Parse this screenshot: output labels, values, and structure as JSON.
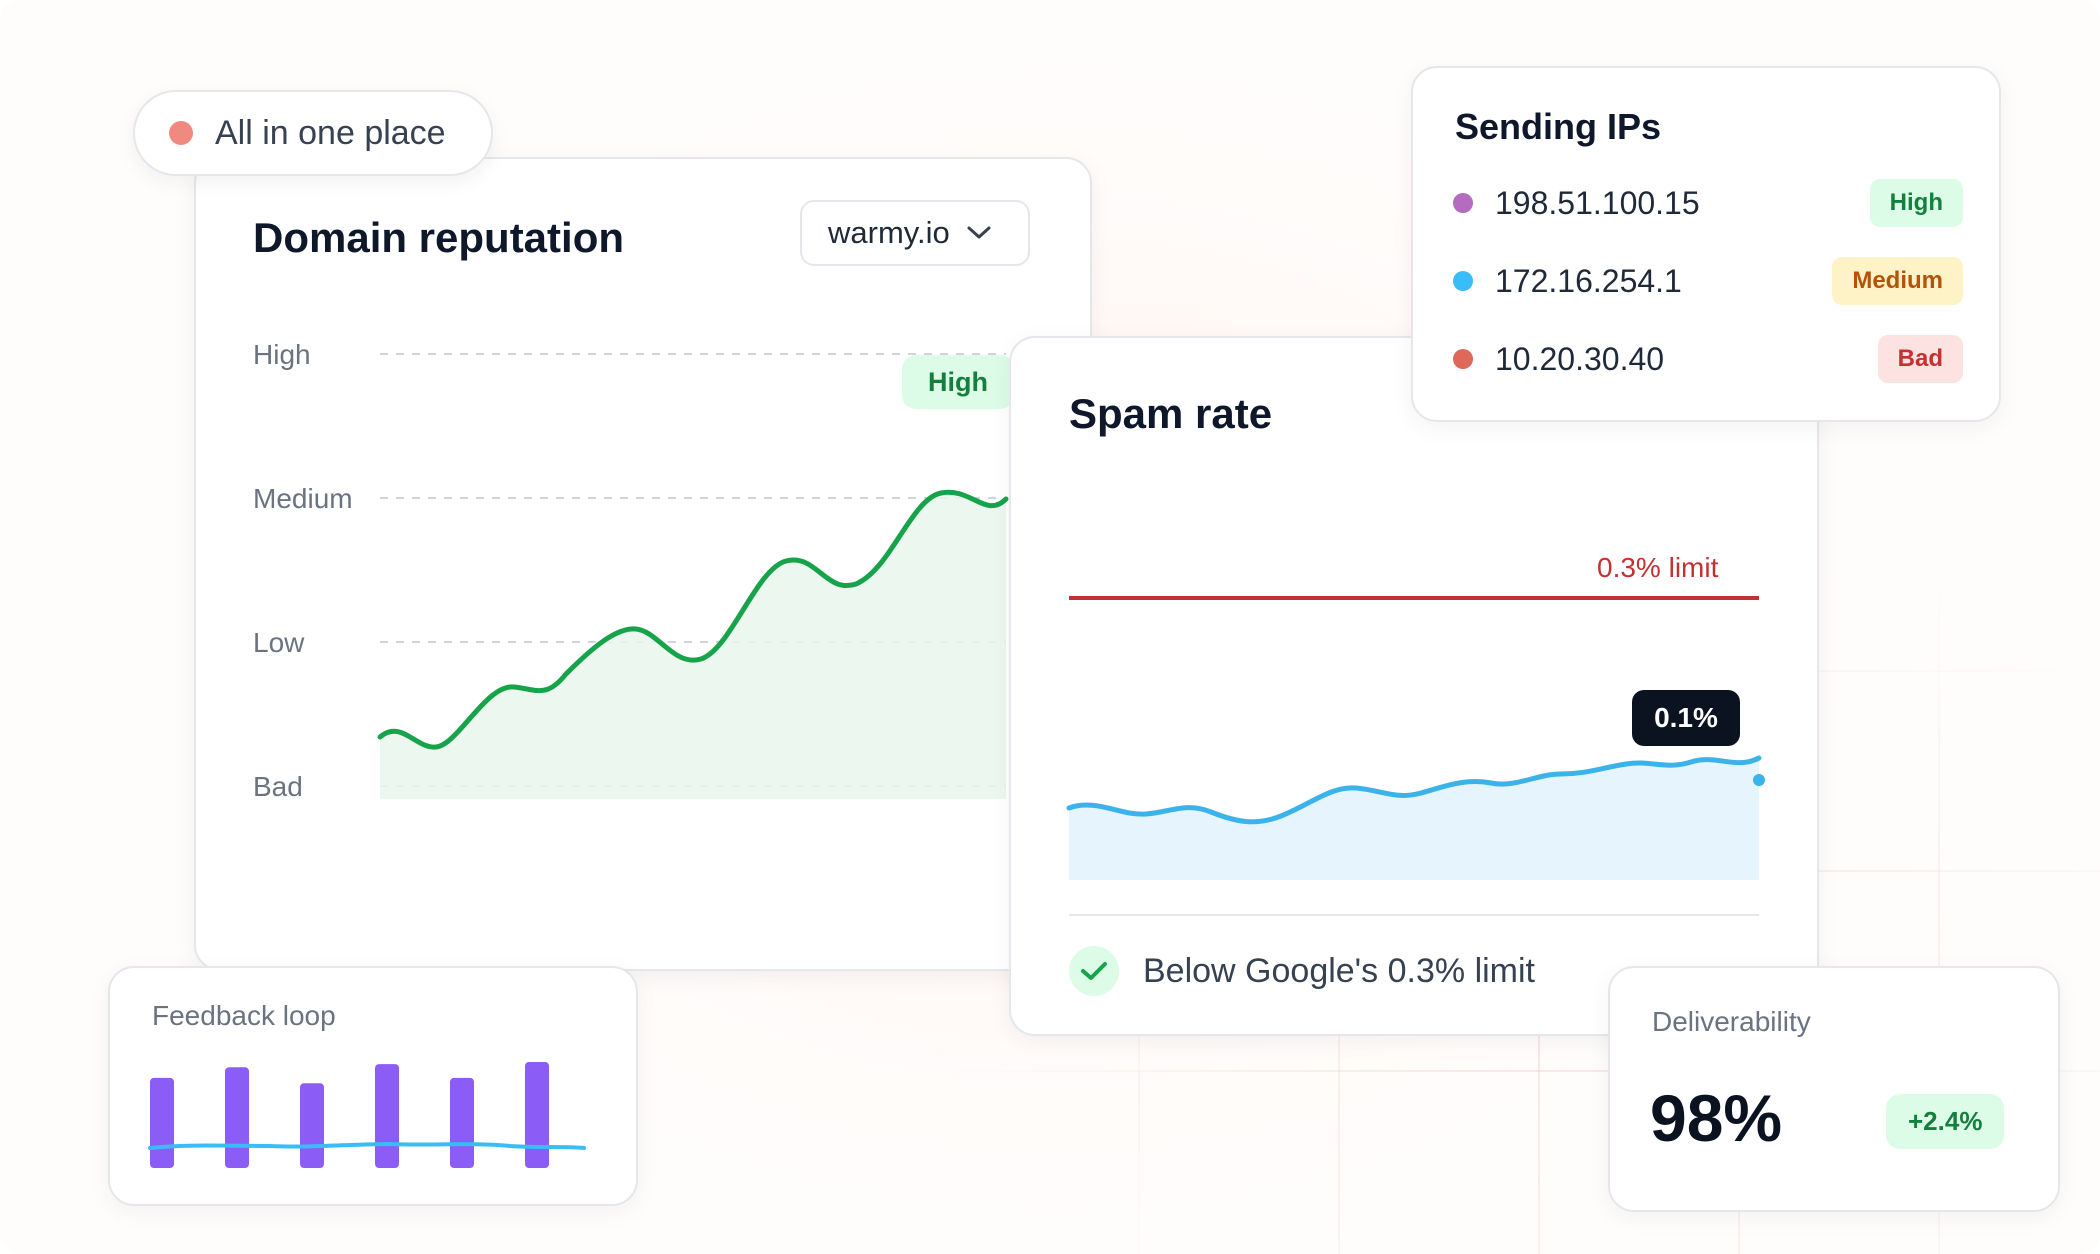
{
  "badge": {
    "label": "All in one place",
    "dot_color": "#f08a80"
  },
  "domain_reputation": {
    "title": "Domain reputation",
    "domain_select": {
      "value": "warmy.io"
    },
    "y_levels": [
      "High",
      "Medium",
      "Low",
      "Bad"
    ],
    "current_badge": "High",
    "line_color": "#16a34a"
  },
  "spam_rate": {
    "title": "Spam rate",
    "limit_label": "0.3% limit",
    "current_value": "0.1%",
    "footer": "Below Google's 0.3% limit",
    "limit_color": "#c53030",
    "line_color": "#3bb3ea"
  },
  "sending_ips": {
    "title": "Sending IPs",
    "items": [
      {
        "ip": "198.51.100.15",
        "status": "High",
        "dot_color": "#b56bc0",
        "badge_bg": "#dcfce7",
        "badge_fg": "#15803d"
      },
      {
        "ip": "172.16.254.1",
        "status": "Medium",
        "dot_color": "#38bdf8",
        "badge_bg": "#fef3c7",
        "badge_fg": "#b45309"
      },
      {
        "ip": "10.20.30.40",
        "status": "Bad",
        "dot_color": "#e0685a",
        "badge_bg": "#fde2e2",
        "badge_fg": "#c53030"
      }
    ]
  },
  "feedback_loop": {
    "title": "Feedback loop",
    "bar_color": "#8b5cf6",
    "line_color": "#38bdf8"
  },
  "deliverability": {
    "title": "Deliverability",
    "value": "98%",
    "delta": "+2.4%"
  },
  "chart_data": [
    {
      "type": "area",
      "title": "Domain reputation",
      "y_categories": [
        "Bad",
        "Low",
        "Medium",
        "High"
      ],
      "x": [
        0,
        1,
        2,
        3,
        4,
        5,
        6,
        7,
        8,
        9,
        10,
        11,
        12
      ],
      "values": [
        0.35,
        0.25,
        0.7,
        0.78,
        1.0,
        0.92,
        1.55,
        1.4,
        2.0,
        1.85,
        2.5,
        2.45,
        2.55
      ]
    },
    {
      "type": "area",
      "title": "Spam rate",
      "unit": "%",
      "limit": 0.3,
      "current": 0.1,
      "x": [
        0,
        1,
        2,
        3,
        4,
        5,
        6,
        7,
        8,
        9,
        10,
        11,
        12,
        13
      ],
      "values": [
        0.075,
        0.07,
        0.074,
        0.068,
        0.079,
        0.083,
        0.081,
        0.085,
        0.084,
        0.09,
        0.089,
        0.094,
        0.093,
        0.097
      ]
    },
    {
      "type": "bar",
      "title": "Feedback loop",
      "categories": [
        "1",
        "2",
        "3",
        "4",
        "5",
        "6"
      ],
      "values": [
        0.85,
        0.95,
        0.8,
        0.98,
        0.85,
        1.0
      ]
    }
  ]
}
